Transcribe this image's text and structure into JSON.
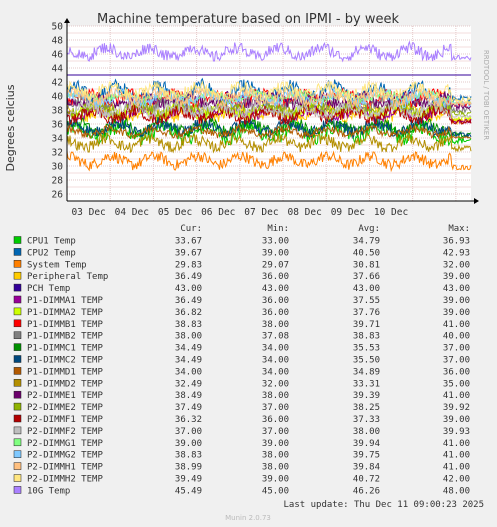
{
  "chart_data": {
    "type": "line",
    "title": "Machine temperature based on IPMI - by week",
    "ylabel": "Degrees celcius",
    "side_label": "RRDTOOL / TOBI OETIKER",
    "ylim": [
      25,
      50
    ],
    "yticks": [
      26,
      28,
      30,
      32,
      34,
      36,
      38,
      40,
      42,
      44,
      46,
      48,
      50
    ],
    "xlim": [
      0,
      9.35
    ],
    "x_ticks": [
      {
        "x": 0.5,
        "label": "03 Dec"
      },
      {
        "x": 1.5,
        "label": "04 Dec"
      },
      {
        "x": 2.5,
        "label": "05 Dec"
      },
      {
        "x": 3.5,
        "label": "06 Dec"
      },
      {
        "x": 4.5,
        "label": "07 Dec"
      },
      {
        "x": 5.5,
        "label": "08 Dec"
      },
      {
        "x": 6.5,
        "label": "09 Dec"
      },
      {
        "x": 7.5,
        "label": "10 Dec"
      }
    ],
    "legend_headers": {
      "cur": "Cur:",
      "min": "Min:",
      "avg": "Avg:",
      "max": "Max:"
    },
    "series": [
      {
        "name": "CPU1 Temp",
        "color": "#00cc00",
        "cur": "33.67",
        "min": "33.00",
        "avg": "34.79",
        "max": "36.93"
      },
      {
        "name": "CPU2 Temp",
        "color": "#0066b3",
        "cur": "39.67",
        "min": "39.00",
        "avg": "40.50",
        "max": "42.93"
      },
      {
        "name": "System Temp",
        "color": "#ff8000",
        "cur": "29.83",
        "min": "29.07",
        "avg": "30.81",
        "max": "32.00"
      },
      {
        "name": "Peripheral Temp",
        "color": "#ffcc00",
        "cur": "36.49",
        "min": "36.00",
        "avg": "37.66",
        "max": "39.00"
      },
      {
        "name": "PCH Temp",
        "color": "#330099",
        "cur": "43.00",
        "min": "43.00",
        "avg": "43.00",
        "max": "43.00"
      },
      {
        "name": "P1-DIMMA1 TEMP",
        "color": "#990099",
        "cur": "36.49",
        "min": "36.00",
        "avg": "37.55",
        "max": "39.00"
      },
      {
        "name": "P1-DIMMA2 TEMP",
        "color": "#ccff00",
        "cur": "36.82",
        "min": "36.00",
        "avg": "37.76",
        "max": "39.00"
      },
      {
        "name": "P1-DIMMB1 TEMP",
        "color": "#ff0000",
        "cur": "38.83",
        "min": "38.00",
        "avg": "39.71",
        "max": "41.00"
      },
      {
        "name": "P1-DIMMB2 TEMP",
        "color": "#808080",
        "cur": "38.00",
        "min": "37.08",
        "avg": "38.83",
        "max": "40.00"
      },
      {
        "name": "P1-DIMMC1 TEMP",
        "color": "#008f00",
        "cur": "34.49",
        "min": "34.00",
        "avg": "35.53",
        "max": "37.00"
      },
      {
        "name": "P1-DIMMC2 TEMP",
        "color": "#00487d",
        "cur": "34.49",
        "min": "34.00",
        "avg": "35.50",
        "max": "37.00"
      },
      {
        "name": "P1-DIMMD1 TEMP",
        "color": "#b35a00",
        "cur": "34.00",
        "min": "34.00",
        "avg": "34.89",
        "max": "36.00"
      },
      {
        "name": "P1-DIMMD2 TEMP",
        "color": "#b38f00",
        "cur": "32.49",
        "min": "32.00",
        "avg": "33.31",
        "max": "35.00"
      },
      {
        "name": "P2-DIMME1 TEMP",
        "color": "#6b006b",
        "cur": "38.49",
        "min": "38.00",
        "avg": "39.39",
        "max": "41.00"
      },
      {
        "name": "P2-DIMME2 TEMP",
        "color": "#8fb300",
        "cur": "37.49",
        "min": "37.00",
        "avg": "38.25",
        "max": "39.92"
      },
      {
        "name": "P2-DIMMF1 TEMP",
        "color": "#b30000",
        "cur": "36.32",
        "min": "36.00",
        "avg": "37.33",
        "max": "39.00"
      },
      {
        "name": "P2-DIMMF2 TEMP",
        "color": "#bebebe",
        "cur": "37.00",
        "min": "37.00",
        "avg": "38.00",
        "max": "39.93"
      },
      {
        "name": "P2-DIMMG1 TEMP",
        "color": "#80ff80",
        "cur": "39.00",
        "min": "39.00",
        "avg": "39.94",
        "max": "41.00"
      },
      {
        "name": "P2-DIMMG2 TEMP",
        "color": "#80c9ff",
        "cur": "38.83",
        "min": "38.00",
        "avg": "39.75",
        "max": "41.00"
      },
      {
        "name": "P2-DIMMH1 TEMP",
        "color": "#ffc080",
        "cur": "38.99",
        "min": "38.00",
        "avg": "39.84",
        "max": "41.00"
      },
      {
        "name": "P2-DIMMH2 TEMP",
        "color": "#ffe680",
        "cur": "39.49",
        "min": "39.00",
        "avg": "40.72",
        "max": "42.00"
      },
      {
        "name": "10G Temp",
        "color": "#aa80ff",
        "cur": "45.49",
        "min": "45.00",
        "avg": "46.26",
        "max": "48.00"
      }
    ],
    "last_update": "Last update: Thu Dec 11 09:00:23 2025",
    "footer": "Munin 2.0.73"
  }
}
